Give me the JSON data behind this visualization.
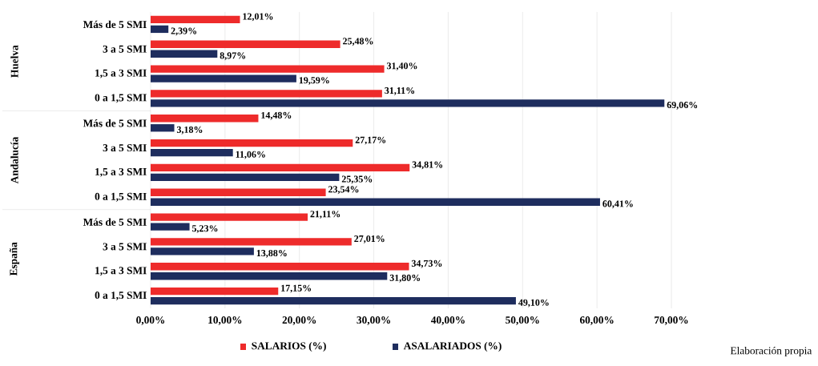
{
  "chart_data": {
    "type": "bar",
    "orientation": "horizontal",
    "categories": [
      "Más de 5 SMI",
      "3 a 5 SMI",
      "1,5 a 3 SMI",
      "0 a 1,5 SMI",
      "Más de 5 SMI",
      "3 a 5 SMI",
      "1,5 a 3 SMI",
      "0 a 1,5 SMI",
      "Más de 5 SMI",
      "3 a 5 SMI",
      "1,5 a 3 SMI",
      "0 a 1,5 SMI"
    ],
    "series": [
      {
        "name": "SALARIOS (%)",
        "color": "#ee2b2b",
        "values": [
          12.01,
          25.48,
          31.4,
          31.11,
          14.48,
          27.17,
          34.81,
          23.54,
          21.11,
          27.01,
          34.73,
          17.15
        ],
        "value_labels": [
          "12,01%",
          "25,48%",
          "31,40%",
          "31,11%",
          "14,48%",
          "27,17%",
          "34,81%",
          "23,54%",
          "21,11%",
          "27,01%",
          "34,73%",
          "17,15%"
        ]
      },
      {
        "name": "ASALARIADOS (%)",
        "color": "#1e2d5e",
        "values": [
          2.39,
          8.97,
          19.59,
          69.06,
          3.18,
          11.06,
          25.35,
          60.41,
          5.23,
          13.88,
          31.8,
          49.1
        ],
        "value_labels": [
          "2,39%",
          "8,97%",
          "19,59%",
          "69,06%",
          "3,18%",
          "11,06%",
          "25,35%",
          "60,41%",
          "5,23%",
          "13,88%",
          "31,80%",
          "49,10%"
        ]
      }
    ],
    "xlim": [
      0,
      70
    ],
    "xticks": [
      {
        "value": 0,
        "label": "0,00%"
      },
      {
        "value": 10,
        "label": "10,00%"
      },
      {
        "value": 20,
        "label": "20,00%"
      },
      {
        "value": 30,
        "label": "30,00%"
      },
      {
        "value": 40,
        "label": "40,00%"
      },
      {
        "value": 50,
        "label": "50,00%"
      },
      {
        "value": 60,
        "label": "60,00%"
      },
      {
        "value": 70,
        "label": "70,00%"
      }
    ],
    "grid": "x",
    "legend": "bottom",
    "annotations": [
      "Huelva",
      "Andalucía",
      "España",
      "Elaboración propia"
    ]
  }
}
